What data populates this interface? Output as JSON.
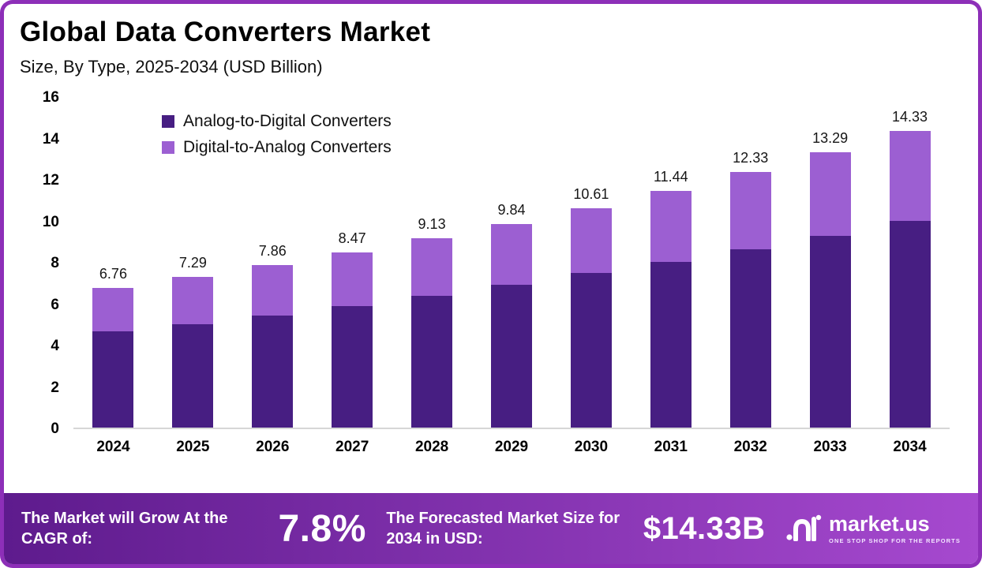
{
  "title": "Global Data Converters Market",
  "subtitle": "Size, By Type, 2025-2034 (USD Billion)",
  "colors": {
    "adc": "#471e82",
    "dac": "#9c5fd2",
    "frame": "#8d2fb8",
    "banner_gradient_left": "#5e1b8d",
    "banner_gradient_right": "#a649cf"
  },
  "legend": [
    {
      "label": "Analog-to-Digital Converters",
      "color": "#471e82"
    },
    {
      "label": "Digital-to-Analog Converters",
      "color": "#9c5fd2"
    }
  ],
  "chart_data": {
    "type": "bar",
    "stacked": true,
    "title": "Global Data Converters Market Size, By Type, 2025-2034 (USD Billion)",
    "categories": [
      "2024",
      "2025",
      "2026",
      "2027",
      "2028",
      "2029",
      "2030",
      "2031",
      "2032",
      "2033",
      "2034"
    ],
    "series": [
      {
        "name": "Analog-to-Digital Converters",
        "values": [
          4.65,
          5.0,
          5.4,
          5.85,
          6.35,
          6.9,
          7.45,
          8.0,
          8.6,
          9.25,
          10.0
        ]
      },
      {
        "name": "Digital-to-Analog Converters",
        "values": [
          2.11,
          2.29,
          2.46,
          2.62,
          2.78,
          2.94,
          3.16,
          3.44,
          3.73,
          4.04,
          4.33
        ]
      }
    ],
    "totals": [
      6.76,
      7.29,
      7.86,
      8.47,
      9.13,
      9.84,
      10.61,
      11.44,
      12.33,
      13.29,
      14.33
    ],
    "xlabel": "",
    "ylabel": "",
    "ylim": [
      0,
      16
    ],
    "yticks": [
      0,
      2,
      4,
      6,
      8,
      10,
      12,
      14,
      16
    ],
    "grid": false,
    "legend_position": "top-left"
  },
  "banner": {
    "cagr_label": "The Market will Grow At the CAGR of:",
    "cagr_value": "7.8%",
    "forecast_label": "The Forecasted Market Size for 2034 in USD:",
    "forecast_value": "$14.33B",
    "logo_text": "market.us",
    "logo_tagline": "ONE STOP SHOP FOR THE REPORTS"
  }
}
